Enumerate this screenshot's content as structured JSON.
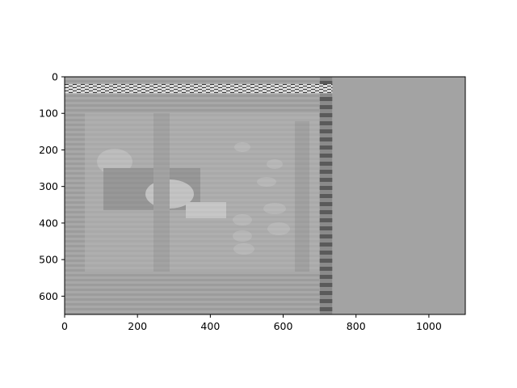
{
  "chart_data": {
    "type": "heatmap",
    "description_kind": "imshow",
    "colormap": "gray",
    "x_ticks": [
      0,
      200,
      400,
      600,
      800,
      1000
    ],
    "y_ticks": [
      0,
      100,
      200,
      300,
      400,
      500,
      600
    ],
    "x_tick_labels": [
      "0",
      "200",
      "400",
      "600",
      "800",
      "1000"
    ],
    "y_tick_labels": [
      "0",
      "100",
      "200",
      "300",
      "400",
      "500",
      "600"
    ],
    "xlim": [
      0,
      1100
    ],
    "ylim": [
      650,
      0
    ],
    "y_inverted": true,
    "grid": false,
    "legend": "none",
    "title": "",
    "xlabel": "",
    "ylabel": "",
    "regions": [
      {
        "name": "image-content",
        "x_range": [
          0,
          700
        ],
        "y_range": [
          0,
          650
        ],
        "tone": "noisy-gray"
      },
      {
        "name": "striped-band",
        "x_range": [
          700,
          735
        ],
        "y_range": [
          0,
          650
        ],
        "tone": "dark-striped"
      },
      {
        "name": "uniform-fill",
        "x_range": [
          735,
          1100
        ],
        "y_range": [
          0,
          650
        ],
        "tone": "uniform-gray"
      },
      {
        "name": "top-noise-band",
        "x_range": [
          0,
          735
        ],
        "y_range": [
          20,
          45
        ],
        "tone": "high-contrast-noise"
      }
    ],
    "colors": {
      "background_gray": "#a3a3a3",
      "content_gray": "#a6a6a6",
      "band_dark": "#6e6e6e",
      "figure_bg": "#ffffff"
    }
  }
}
